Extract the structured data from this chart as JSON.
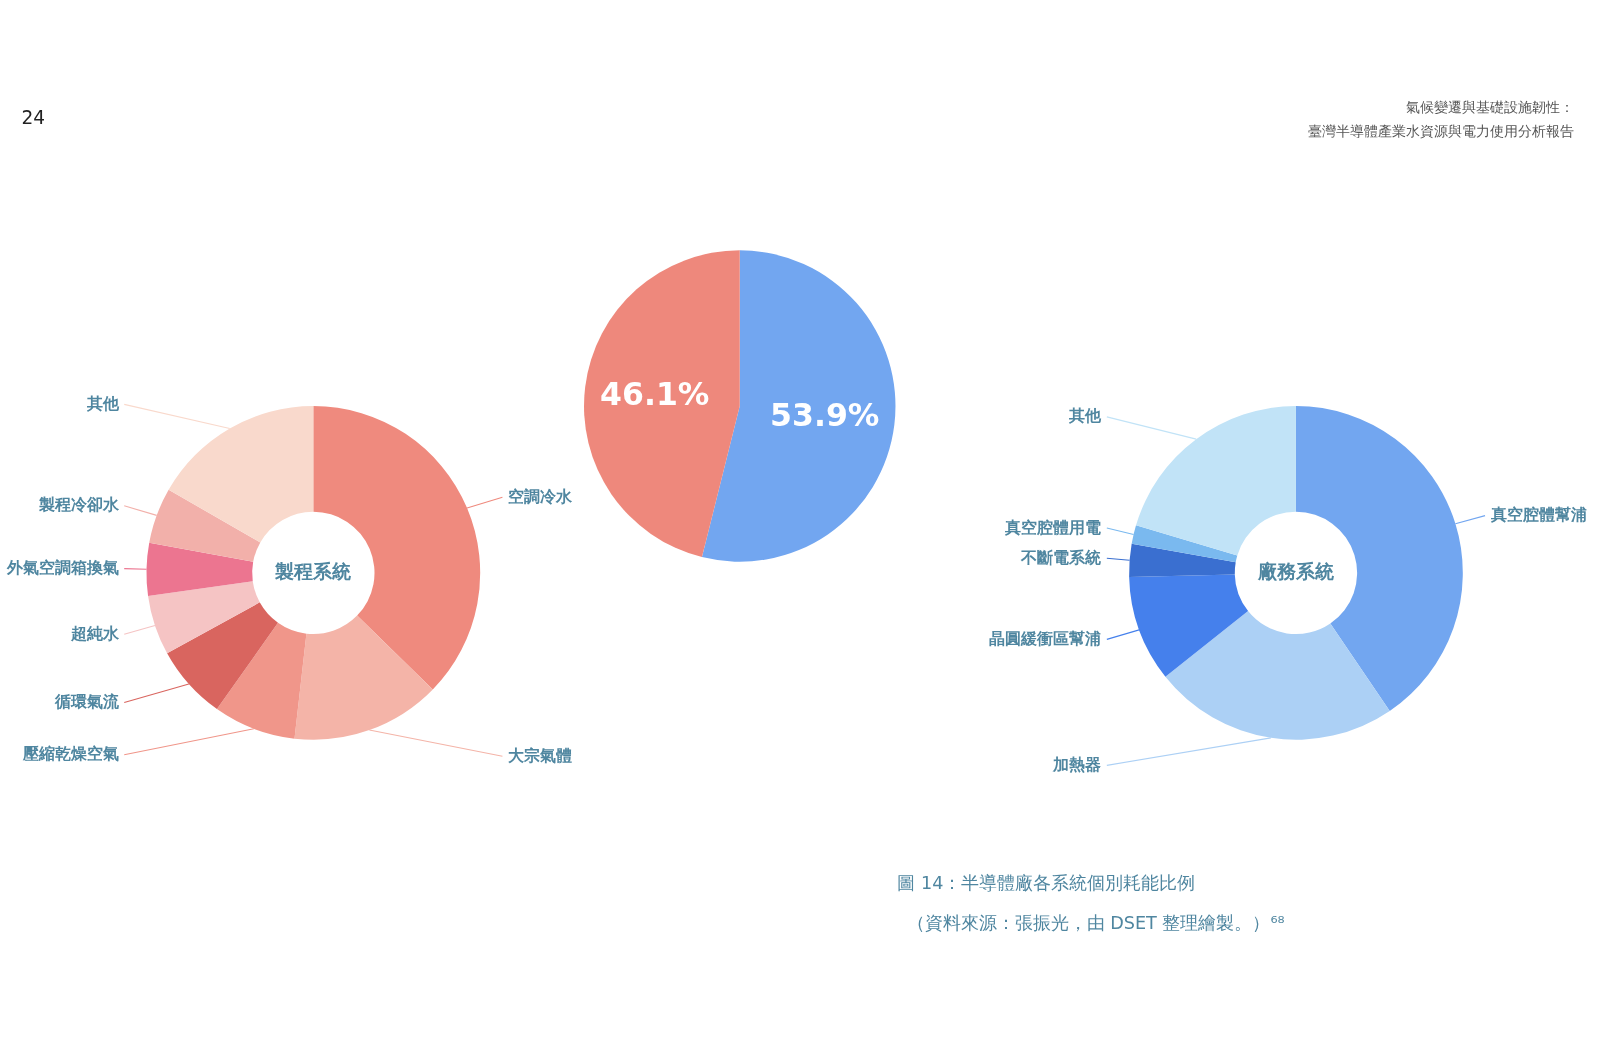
{
  "chart_data": [
    {
      "type": "donut",
      "title": "製程系統",
      "categories": [
        "空調冷水",
        "大宗氣體",
        "壓縮乾燥空氣",
        "循環氣流",
        "超純水",
        "外氣空調箱換氣",
        "製程冷卻水",
        "其他"
      ],
      "values": [
        37.3,
        14.5,
        8.0,
        7.2,
        5.8,
        5.1,
        5.4,
        16.7
      ],
      "colors": [
        "#ef8a7e",
        "#f4b4a8",
        "#f0968a",
        "#d9655f",
        "#f5c4c4",
        "#ec7590",
        "#f2b0aa",
        "#f9d9cc"
      ],
      "annotations": [
        "24"
      ]
    },
    {
      "type": "pie",
      "categories": [
        null,
        null
      ],
      "values": [
        53.9,
        46.1
      ],
      "colors": [
        "#72a6f0",
        "#ee887c"
      ],
      "value_labels": [
        "53.9%",
        "46.1%"
      ]
    },
    {
      "type": "donut",
      "title": "廠務系統",
      "categories": [
        "真空腔體幫浦",
        "加熱器",
        "晶圓緩衝區幫浦",
        "不斷電系統",
        "真空腔體用電",
        "其他"
      ],
      "values": [
        40.5,
        23.8,
        10.3,
        3.2,
        1.8,
        20.4
      ],
      "colors": [
        "#72a6f0",
        "#acd0f5",
        "#4580ec",
        "#3a6fd0",
        "#7ab9ef",
        "#c1e3f7"
      ],
      "annotations": [
        "氣候變遷與基礎設施韌性：",
        "臺灣半導體產業水資源與電力使用分析報告",
        "圖 14：半導體廠各系統個別耗能比例",
        "（資料來源：張振光，由 DSET 整理繪製。）⁶⁸"
      ]
    }
  ]
}
